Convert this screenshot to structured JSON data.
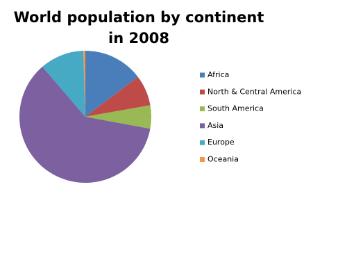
{
  "chart_data": {
    "type": "pie",
    "title": "World population by continent in 2008",
    "categories": [
      "Africa",
      "North & Central America",
      "South America",
      "Asia",
      "Europe",
      "Oceania"
    ],
    "values": [
      14.7,
      7.5,
      5.7,
      60.8,
      10.8,
      0.5
    ],
    "colors": [
      "#4a7ebb",
      "#be4b48",
      "#98b954",
      "#7d60a0",
      "#46aac5",
      "#f79646"
    ],
    "legend": "right"
  }
}
